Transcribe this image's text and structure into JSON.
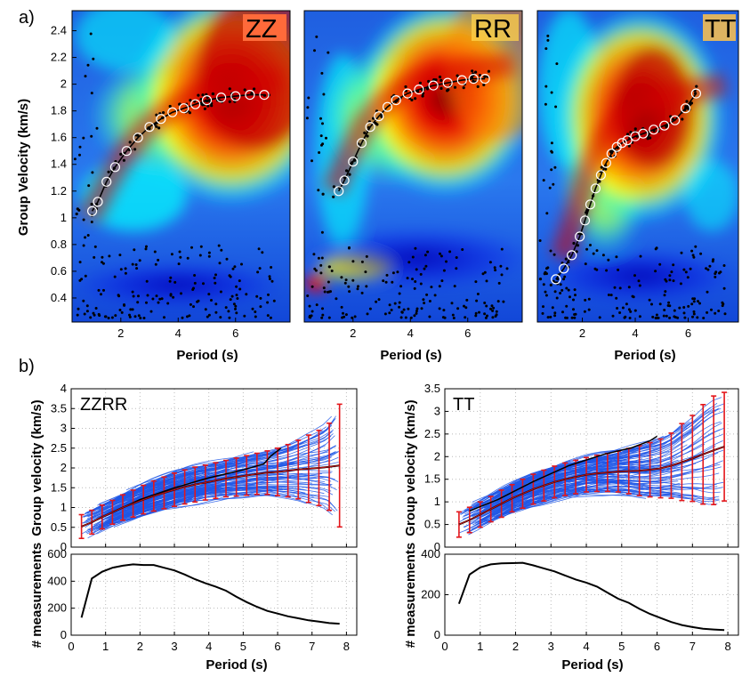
{
  "panel_labels": {
    "a": "a)",
    "b": "b)"
  },
  "colors": {
    "jet": [
      "#00007f",
      "#0000ff",
      "#007fff",
      "#00ffff",
      "#7fff7f",
      "#ffff00",
      "#ff7f00",
      "#ff0000",
      "#7f0000"
    ],
    "spectrum_bg": "#2f6fd6",
    "curve_blue": "#1f57e6",
    "error_red": "#e4161b",
    "line_black": "#000000",
    "marker_white": "#ffffff",
    "label_box": "#ff6a3a"
  },
  "chart_data": [
    {
      "id": "a-zz",
      "type": "heatmap",
      "label": "ZZ",
      "xlabel": "Period (s)",
      "ylabel": "Group Velocity (km/s)",
      "xlim": [
        0.3,
        7.9
      ],
      "ylim": [
        0.22,
        2.55
      ],
      "xticks": [
        "2",
        "4",
        "6"
      ],
      "yticks": [
        "0.4",
        "0.6",
        "0.8",
        "1",
        "1.2",
        "1.4",
        "1.6",
        "1.8",
        "2",
        "2.2",
        "2.4"
      ],
      "dispersion_curve": {
        "x": [
          1.0,
          1.2,
          1.5,
          1.8,
          2.2,
          2.6,
          3.0,
          3.4,
          3.8,
          4.2,
          4.6,
          5.0,
          5.5,
          6.0,
          6.5,
          7.0
        ],
        "y": [
          1.05,
          1.12,
          1.27,
          1.38,
          1.5,
          1.6,
          1.68,
          1.74,
          1.79,
          1.82,
          1.85,
          1.88,
          1.9,
          1.91,
          1.92,
          1.92
        ]
      },
      "energy_ridge": {
        "x": [
          0.9,
          1.5,
          2.2,
          3.0,
          3.8,
          4.6,
          5.5,
          6.5,
          7.6
        ],
        "y": [
          1.0,
          1.25,
          1.5,
          1.7,
          1.82,
          1.9,
          1.95,
          2.0,
          2.05
        ]
      }
    },
    {
      "id": "a-rr",
      "type": "heatmap",
      "label": "RR",
      "xlabel": "Period (s)",
      "xlim": [
        0.3,
        7.9
      ],
      "ylim": [
        0.22,
        2.55
      ],
      "xticks": [
        "2",
        "4",
        "6"
      ],
      "dispersion_curve": {
        "x": [
          1.5,
          1.7,
          2.0,
          2.3,
          2.6,
          2.9,
          3.2,
          3.5,
          3.9,
          4.3,
          4.8,
          5.3,
          5.8,
          6.2,
          6.6
        ],
        "y": [
          1.2,
          1.28,
          1.42,
          1.56,
          1.68,
          1.76,
          1.83,
          1.88,
          1.93,
          1.96,
          1.99,
          2.01,
          2.03,
          2.04,
          2.04
        ]
      },
      "energy_ridge": {
        "x": [
          1.3,
          1.8,
          2.4,
          3.0,
          3.8,
          4.6,
          5.5,
          6.5,
          7.6
        ],
        "y": [
          1.2,
          1.45,
          1.7,
          1.85,
          1.97,
          2.05,
          2.1,
          2.12,
          2.15
        ]
      }
    },
    {
      "id": "a-tt",
      "type": "heatmap",
      "label": "TT",
      "xlabel": "Period (s)",
      "xlim": [
        0.3,
        7.9
      ],
      "ylim": [
        0.22,
        2.55
      ],
      "xticks": [
        "2",
        "4",
        "6"
      ],
      "dispersion_curve": {
        "x": [
          1.0,
          1.3,
          1.6,
          1.9,
          2.1,
          2.3,
          2.5,
          2.7,
          2.9,
          3.1,
          3.3,
          3.5,
          3.7,
          4.0,
          4.3,
          4.7,
          5.1,
          5.5,
          5.9,
          6.3
        ],
        "y": [
          0.54,
          0.62,
          0.72,
          0.86,
          0.98,
          1.1,
          1.22,
          1.32,
          1.41,
          1.48,
          1.53,
          1.56,
          1.58,
          1.61,
          1.63,
          1.66,
          1.69,
          1.73,
          1.82,
          1.93
        ]
      },
      "energy_ridge": {
        "x": [
          1.2,
          1.7,
          2.2,
          2.8,
          3.5,
          4.3,
          5.2,
          6.2,
          7.4
        ],
        "y": [
          0.7,
          1.0,
          1.35,
          1.6,
          1.75,
          1.85,
          1.9,
          1.95,
          2.0
        ]
      }
    },
    {
      "id": "b-zzrr",
      "type": "line",
      "label": "ZZRR",
      "ylabel": "Group velocity (km/s)",
      "xlim": [
        0,
        8.3
      ],
      "ylim": [
        0,
        4
      ],
      "yticks": [
        "0",
        "0.5",
        "1",
        "1.5",
        "2",
        "2.5",
        "3",
        "3.5",
        "4"
      ],
      "mean": {
        "x": [
          0.3,
          0.6,
          0.9,
          1.2,
          1.5,
          1.8,
          2.1,
          2.4,
          2.7,
          3.0,
          3.3,
          3.6,
          3.9,
          4.2,
          4.5,
          4.8,
          5.1,
          5.4,
          5.7,
          6.0,
          6.3,
          6.6,
          6.9,
          7.2,
          7.5,
          7.8
        ],
        "y": [
          0.52,
          0.63,
          0.76,
          0.88,
          1.0,
          1.1,
          1.2,
          1.29,
          1.37,
          1.45,
          1.52,
          1.58,
          1.63,
          1.68,
          1.73,
          1.77,
          1.81,
          1.85,
          1.88,
          1.9,
          1.93,
          1.96,
          1.98,
          2.0,
          2.03,
          2.06
        ]
      },
      "std": [
        0.3,
        0.3,
        0.3,
        0.3,
        0.32,
        0.34,
        0.36,
        0.38,
        0.4,
        0.42,
        0.43,
        0.44,
        0.44,
        0.45,
        0.46,
        0.48,
        0.5,
        0.52,
        0.55,
        0.6,
        0.66,
        0.74,
        0.85,
        0.95,
        1.1,
        1.55
      ],
      "example_path": {
        "x": [
          1.0,
          2.0,
          3.0,
          4.0,
          5.0,
          5.6,
          5.8,
          6.1
        ],
        "y": [
          0.8,
          1.2,
          1.5,
          1.75,
          1.95,
          2.1,
          2.3,
          2.5
        ]
      }
    },
    {
      "id": "b-zzrr-counts",
      "type": "line",
      "ylabel": "# measurements",
      "xlabel": "Period (s)",
      "xlim": [
        0,
        8.3
      ],
      "ylim": [
        0,
        600
      ],
      "xticks": [
        "0",
        "1",
        "2",
        "3",
        "4",
        "5",
        "6",
        "7",
        "8"
      ],
      "yticks": [
        "0",
        "200",
        "400",
        "600"
      ],
      "x": [
        0.3,
        0.6,
        0.9,
        1.2,
        1.5,
        1.8,
        2.1,
        2.4,
        2.7,
        3.0,
        3.3,
        3.6,
        3.9,
        4.2,
        4.5,
        4.8,
        5.1,
        5.4,
        5.7,
        6.0,
        6.3,
        6.6,
        6.9,
        7.2,
        7.5,
        7.8
      ],
      "y": [
        130,
        420,
        470,
        500,
        515,
        525,
        520,
        520,
        500,
        480,
        450,
        415,
        385,
        360,
        330,
        285,
        245,
        210,
        180,
        160,
        140,
        125,
        110,
        100,
        90,
        85
      ]
    },
    {
      "id": "b-tt",
      "type": "line",
      "label": "TT",
      "ylabel": "Group velocity (km/s)",
      "xlim": [
        0,
        8.3
      ],
      "ylim": [
        0,
        3.5
      ],
      "yticks": [
        "0",
        "0.5",
        "1",
        "1.5",
        "2",
        "2.5",
        "3",
        "3.5"
      ],
      "mean": {
        "x": [
          0.4,
          0.7,
          1.0,
          1.3,
          1.6,
          1.9,
          2.2,
          2.5,
          2.8,
          3.1,
          3.4,
          3.7,
          4.0,
          4.3,
          4.6,
          4.9,
          5.2,
          5.5,
          5.8,
          6.1,
          6.4,
          6.7,
          7.0,
          7.3,
          7.6,
          7.9
        ],
        "y": [
          0.5,
          0.6,
          0.72,
          0.84,
          0.96,
          1.08,
          1.18,
          1.28,
          1.36,
          1.44,
          1.5,
          1.55,
          1.6,
          1.63,
          1.65,
          1.67,
          1.68,
          1.69,
          1.71,
          1.74,
          1.8,
          1.88,
          1.96,
          2.05,
          2.14,
          2.22
        ]
      },
      "std": [
        0.28,
        0.28,
        0.28,
        0.28,
        0.3,
        0.3,
        0.32,
        0.33,
        0.34,
        0.35,
        0.36,
        0.37,
        0.38,
        0.4,
        0.42,
        0.45,
        0.5,
        0.55,
        0.6,
        0.65,
        0.72,
        0.85,
        0.95,
        1.1,
        1.2,
        1.2
      ],
      "example_path": {
        "x": [
          0.7,
          1.5,
          2.5,
          3.5,
          4.5,
          5.3,
          5.8,
          6.0
        ],
        "y": [
          0.8,
          1.05,
          1.45,
          1.8,
          2.05,
          2.2,
          2.35,
          2.45
        ]
      }
    },
    {
      "id": "b-tt-counts",
      "type": "line",
      "ylabel": "# measurements",
      "xlabel": "Period (s)",
      "xlim": [
        0,
        8.3
      ],
      "ylim": [
        0,
        400
      ],
      "xticks": [
        "0",
        "1",
        "2",
        "3",
        "4",
        "5",
        "6",
        "7",
        "8"
      ],
      "yticks": [
        "0",
        "200",
        "400"
      ],
      "x": [
        0.4,
        0.7,
        1.0,
        1.3,
        1.6,
        1.9,
        2.2,
        2.5,
        2.8,
        3.1,
        3.4,
        3.7,
        4.0,
        4.3,
        4.6,
        4.9,
        5.2,
        5.5,
        5.8,
        6.1,
        6.4,
        6.7,
        7.0,
        7.3,
        7.6,
        7.9
      ],
      "y": [
        155,
        300,
        335,
        350,
        355,
        356,
        358,
        345,
        330,
        315,
        295,
        275,
        260,
        240,
        210,
        180,
        160,
        130,
        105,
        85,
        65,
        50,
        40,
        32,
        28,
        25
      ]
    }
  ]
}
